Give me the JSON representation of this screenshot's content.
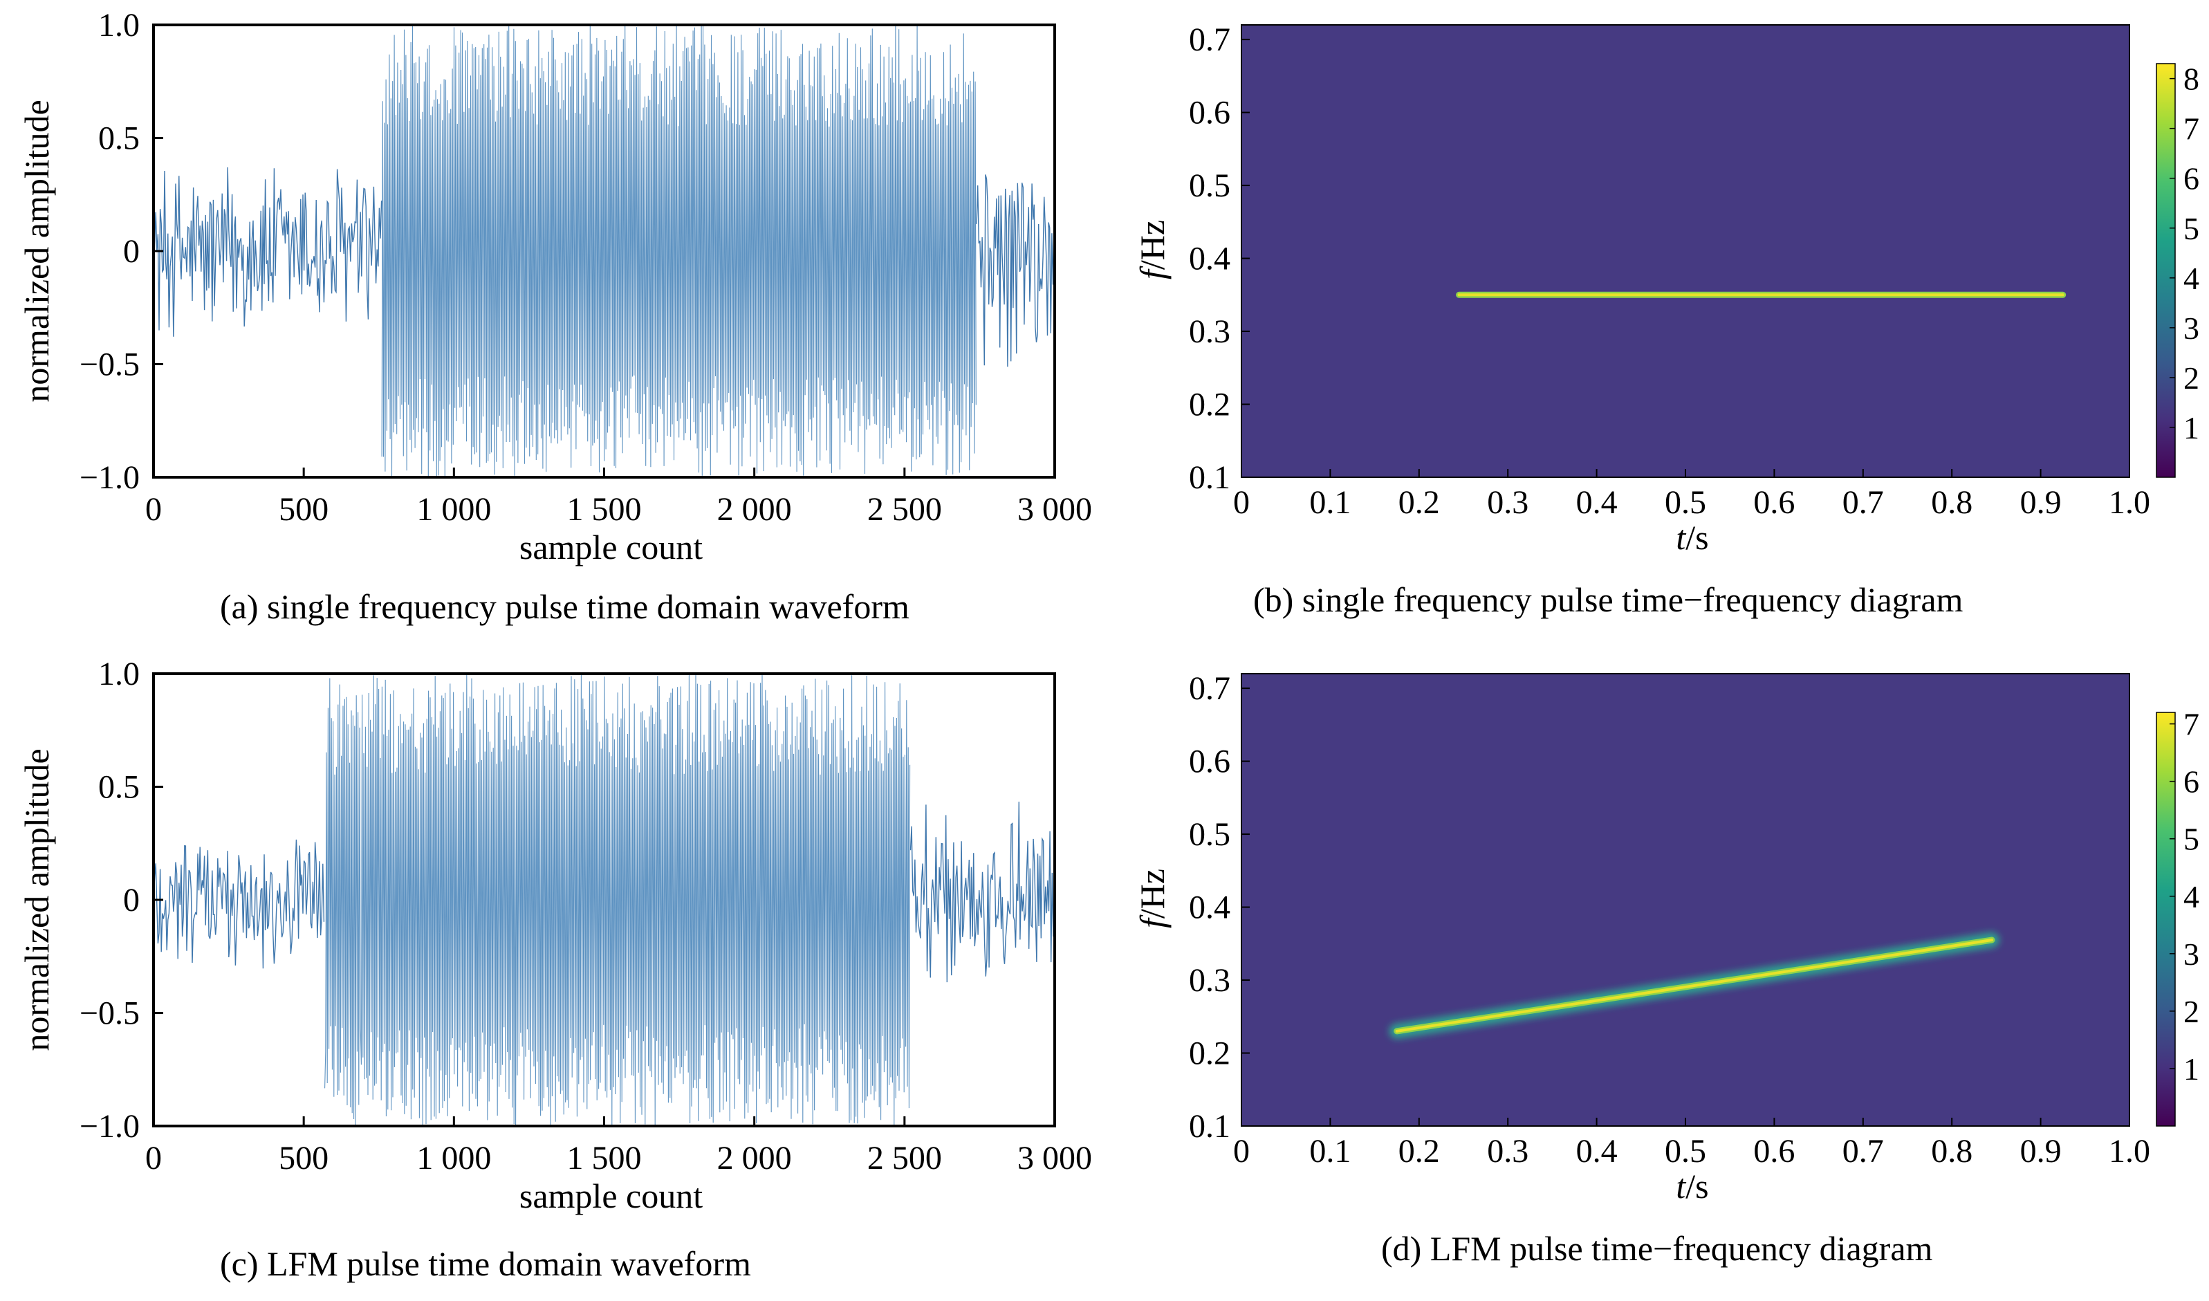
{
  "chart_data": [
    {
      "id": "a",
      "type": "line",
      "caption": "(a) single frequency pulse time domain waveform",
      "xlabel": "sample count",
      "ylabel": "normalized amplitude",
      "xlim": [
        0,
        3000
      ],
      "ylim": [
        -1.0,
        1.0
      ],
      "xticks": [
        0,
        500,
        1000,
        1500,
        2000,
        2500,
        3000
      ],
      "xtick_labels": [
        "0",
        "500",
        "1 000",
        "1 500",
        "2 000",
        "2 500",
        "3 000"
      ],
      "yticks": [
        1.0,
        0.5,
        0,
        -0.5,
        -1.0
      ],
      "ytick_labels": [
        "1.0",
        "0.5",
        "0",
        "−0.5",
        "−1.0"
      ],
      "series": [
        {
          "segments": [
            {
              "x": [
                0,
                760
              ],
              "envelope": 0.45,
              "kind": "noise"
            },
            {
              "x": [
                760,
                2740
              ],
              "envelope": 1.0,
              "kind": "pulse"
            },
            {
              "x": [
                2740,
                3000
              ],
              "envelope": 0.55,
              "kind": "noise"
            }
          ]
        }
      ],
      "line_color": "#4a86b8"
    },
    {
      "id": "b",
      "type": "heatmap",
      "caption": "(b) single frequency pulse time−frequency diagram",
      "xlabel_italic": "t",
      "xlabel_rest": "/s",
      "ylabel_italic": "f",
      "ylabel_rest": "/Hz",
      "xlim": [
        0,
        1.0
      ],
      "ylim": [
        0.1,
        0.72
      ],
      "xticks": [
        0,
        0.1,
        0.2,
        0.3,
        0.4,
        0.5,
        0.6,
        0.7,
        0.8,
        0.9,
        1.0
      ],
      "xtick_labels": [
        "0",
        "0.1",
        "0.2",
        "0.3",
        "0.4",
        "0.5",
        "0.6",
        "0.7",
        "0.8",
        "0.9",
        "1.0"
      ],
      "yticks": [
        0.1,
        0.2,
        0.3,
        0.4,
        0.5,
        0.6,
        0.7
      ],
      "ytick_labels": [
        "0.1",
        "0.2",
        "0.3",
        "0.4",
        "0.5",
        "0.6",
        "0.7"
      ],
      "ridge": {
        "x": [
          0.245,
          0.925
        ],
        "y": [
          0.35,
          0.35
        ]
      },
      "colorbar": {
        "min": 0,
        "max": 8.3,
        "ticks": [
          1,
          2,
          3,
          4,
          5,
          6,
          7,
          8
        ],
        "tick_labels": [
          "1",
          "2",
          "3",
          "4",
          "5",
          "6",
          "7",
          "8"
        ]
      }
    },
    {
      "id": "c",
      "type": "line",
      "caption": "(c) LFM pulse time domain waveform",
      "xlabel": "sample count",
      "ylabel": "normalized amplitude",
      "xlim": [
        0,
        3000
      ],
      "ylim": [
        -1.0,
        1.0
      ],
      "xticks": [
        0,
        500,
        1000,
        1500,
        2000,
        2500,
        3000
      ],
      "xtick_labels": [
        "0",
        "500",
        "1 000",
        "1 500",
        "2 000",
        "2 500",
        "3 000"
      ],
      "yticks": [
        1.0,
        0.5,
        0,
        -0.5,
        -1.0
      ],
      "ytick_labels": [
        "1.0",
        "0.5",
        "0",
        "−0.5",
        "−1.0"
      ],
      "series": [
        {
          "segments": [
            {
              "x": [
                0,
                570
              ],
              "envelope": 0.35,
              "kind": "noise"
            },
            {
              "x": [
                570,
                2520
              ],
              "envelope": 1.0,
              "kind": "pulse"
            },
            {
              "x": [
                2520,
                3000
              ],
              "envelope": 0.45,
              "kind": "noise"
            }
          ]
        }
      ],
      "line_color": "#4a86b8"
    },
    {
      "id": "d",
      "type": "heatmap",
      "caption": "(d) LFM pulse time−frequency diagram",
      "xlabel_italic": "t",
      "xlabel_rest": "/s",
      "ylabel_italic": "f",
      "ylabel_rest": "/Hz",
      "xlim": [
        0,
        1.0
      ],
      "ylim": [
        0.1,
        0.72
      ],
      "xticks": [
        0,
        0.1,
        0.2,
        0.3,
        0.4,
        0.5,
        0.6,
        0.7,
        0.8,
        0.9,
        1.0
      ],
      "xtick_labels": [
        "0",
        "0.1",
        "0.2",
        "0.3",
        "0.4",
        "0.5",
        "0.6",
        "0.7",
        "0.8",
        "0.9",
        "1.0"
      ],
      "yticks": [
        0.1,
        0.2,
        0.3,
        0.4,
        0.5,
        0.6,
        0.7
      ],
      "ytick_labels": [
        "0.1",
        "0.2",
        "0.3",
        "0.4",
        "0.5",
        "0.6",
        "0.7"
      ],
      "ridge": {
        "x": [
          0.175,
          0.845
        ],
        "y": [
          0.23,
          0.355
        ]
      },
      "colorbar": {
        "min": 0,
        "max": 7.2,
        "ticks": [
          1,
          2,
          3,
          4,
          5,
          6,
          7
        ],
        "tick_labels": [
          "1",
          "2",
          "3",
          "4",
          "5",
          "6",
          "7"
        ]
      }
    }
  ],
  "colors": {
    "heatmap_background": "#463a82",
    "viridis": [
      "#440154",
      "#46327e",
      "#365c8d",
      "#277f8e",
      "#1fa187",
      "#4ac16d",
      "#a0da39",
      "#fde725"
    ]
  }
}
